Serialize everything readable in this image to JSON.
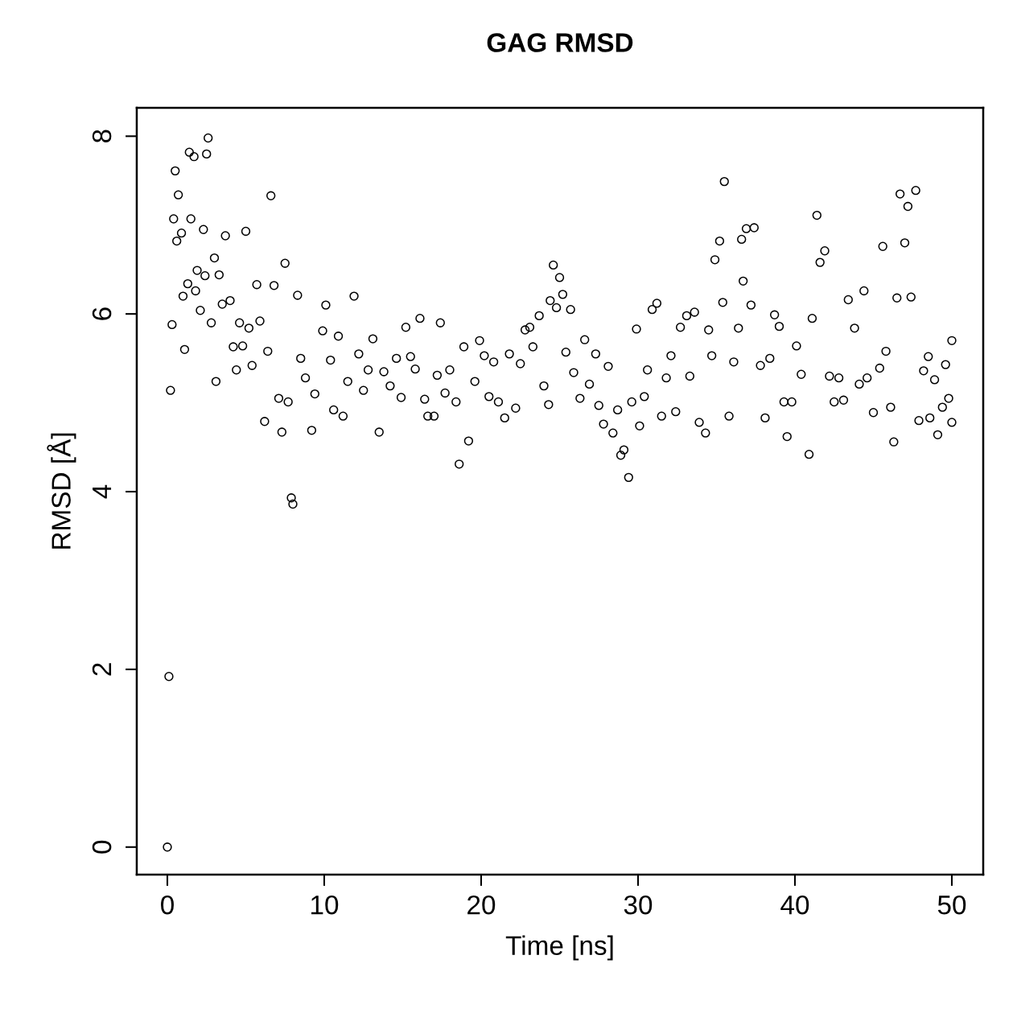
{
  "chart_data": {
    "type": "scatter",
    "title": "GAG RMSD",
    "xlabel": "Time [ns]",
    "ylabel": "RMSD [Å]",
    "xlim": [
      -1.95,
      52.0
    ],
    "ylim": [
      -0.31,
      8.32
    ],
    "xticks": [
      0,
      10,
      20,
      30,
      40,
      50
    ],
    "yticks": [
      0,
      2,
      4,
      6,
      8
    ],
    "grid": false,
    "marker": "circle",
    "series": [
      {
        "color": "#000000",
        "x": [
          0,
          0.1,
          0.2,
          0.3,
          0.4,
          0.5,
          0.6,
          0.7,
          0.9,
          1.0,
          1.1,
          1.3,
          1.4,
          1.5,
          1.7,
          1.8,
          1.9,
          2.1,
          2.3,
          2.4,
          2.5,
          2.6,
          2.8,
          3.0,
          3.1,
          3.3,
          3.5,
          3.7,
          4.0,
          4.2,
          4.4,
          4.6,
          4.8,
          5.0,
          5.2,
          5.4,
          5.7,
          5.9,
          6.2,
          6.4,
          6.6,
          6.8,
          7.1,
          7.3,
          7.5,
          7.7,
          7.9,
          8.0,
          8.3,
          8.5,
          8.8,
          9.2,
          9.4,
          9.9,
          10.1,
          10.4,
          10.6,
          10.9,
          11.2,
          11.5,
          11.9,
          12.2,
          12.5,
          12.8,
          13.1,
          13.5,
          13.8,
          14.2,
          14.6,
          14.9,
          15.2,
          15.5,
          15.8,
          16.1,
          16.4,
          16.6,
          17.0,
          17.2,
          17.4,
          17.7,
          18.0,
          18.4,
          18.6,
          18.9,
          19.2,
          19.6,
          19.9,
          20.2,
          20.5,
          20.8,
          21.1,
          21.5,
          21.8,
          22.2,
          22.5,
          22.8,
          23.1,
          23.3,
          23.7,
          24.0,
          24.3,
          24.4,
          24.6,
          24.8,
          25.0,
          25.2,
          25.4,
          25.7,
          25.9,
          26.3,
          26.6,
          26.9,
          27.3,
          27.5,
          27.8,
          28.1,
          28.4,
          28.7,
          28.9,
          29.1,
          29.4,
          29.6,
          29.9,
          30.1,
          30.4,
          30.6,
          30.9,
          31.2,
          31.5,
          31.8,
          32.1,
          32.4,
          32.7,
          33.1,
          33.3,
          33.6,
          33.9,
          34.3,
          34.5,
          34.7,
          34.9,
          35.2,
          35.4,
          35.5,
          35.8,
          36.1,
          36.4,
          36.6,
          36.7,
          36.9,
          37.2,
          37.4,
          37.8,
          38.1,
          38.4,
          38.7,
          39.0,
          39.3,
          39.5,
          39.8,
          40.1,
          40.4,
          40.9,
          41.1,
          41.4,
          41.6,
          41.9,
          42.2,
          42.5,
          42.8,
          43.1,
          43.4,
          43.8,
          44.1,
          44.4,
          44.6,
          45.0,
          45.4,
          45.6,
          45.8,
          46.1,
          46.3,
          46.5,
          46.7,
          47.0,
          47.2,
          47.4,
          47.7,
          47.9,
          48.2,
          48.5,
          48.6,
          48.9,
          49.1,
          49.4,
          49.6,
          49.8,
          50.0,
          50.0
        ],
        "values": [
          0,
          1.92,
          5.14,
          5.88,
          7.07,
          7.61,
          6.82,
          7.34,
          6.91,
          6.2,
          5.6,
          6.34,
          7.82,
          7.07,
          7.77,
          6.26,
          6.49,
          6.04,
          6.95,
          6.43,
          7.8,
          7.98,
          5.9,
          6.63,
          5.24,
          6.44,
          6.11,
          6.88,
          6.15,
          5.63,
          5.37,
          5.9,
          5.64,
          6.93,
          5.84,
          5.42,
          6.33,
          5.92,
          4.79,
          5.58,
          7.33,
          6.32,
          5.05,
          4.67,
          6.57,
          5.01,
          3.93,
          3.86,
          6.21,
          5.5,
          5.28,
          4.69,
          5.1,
          5.81,
          6.1,
          5.48,
          4.92,
          5.75,
          4.85,
          5.24,
          6.2,
          5.55,
          5.14,
          5.37,
          5.72,
          4.67,
          5.35,
          5.19,
          5.5,
          5.06,
          5.85,
          5.52,
          5.38,
          5.95,
          5.04,
          4.85,
          4.85,
          5.31,
          5.9,
          5.11,
          5.37,
          5.01,
          4.31,
          5.63,
          4.57,
          5.24,
          5.7,
          5.53,
          5.07,
          5.46,
          5.01,
          4.83,
          5.55,
          4.94,
          5.44,
          5.82,
          5.85,
          5.63,
          5.98,
          5.19,
          4.98,
          6.15,
          6.55,
          6.07,
          6.41,
          6.22,
          5.57,
          6.05,
          5.34,
          5.05,
          5.71,
          5.21,
          5.55,
          4.97,
          4.76,
          5.41,
          4.66,
          4.92,
          4.41,
          4.47,
          4.16,
          5.01,
          5.83,
          4.74,
          5.07,
          5.37,
          6.05,
          6.12,
          4.85,
          5.28,
          5.53,
          4.9,
          5.85,
          5.98,
          5.3,
          6.02,
          4.78,
          4.66,
          5.82,
          5.53,
          6.61,
          6.82,
          6.13,
          7.49,
          4.85,
          5.46,
          5.84,
          6.84,
          6.37,
          6.96,
          6.1,
          6.97,
          5.42,
          4.83,
          5.5,
          5.99,
          5.86,
          5.01,
          4.62,
          5.01,
          5.64,
          5.32,
          4.42,
          5.95,
          7.11,
          6.58,
          6.71,
          5.3,
          5.01,
          5.28,
          5.03,
          6.16,
          5.84,
          5.21,
          6.26,
          5.28,
          4.89,
          5.39,
          6.76,
          5.58,
          4.95,
          4.56,
          6.18,
          7.35,
          6.8,
          7.21,
          6.19,
          7.39,
          4.8,
          5.36,
          5.52,
          4.83,
          5.26,
          4.64,
          4.95,
          5.43,
          5.05,
          5.7,
          4.78
        ]
      }
    ]
  }
}
